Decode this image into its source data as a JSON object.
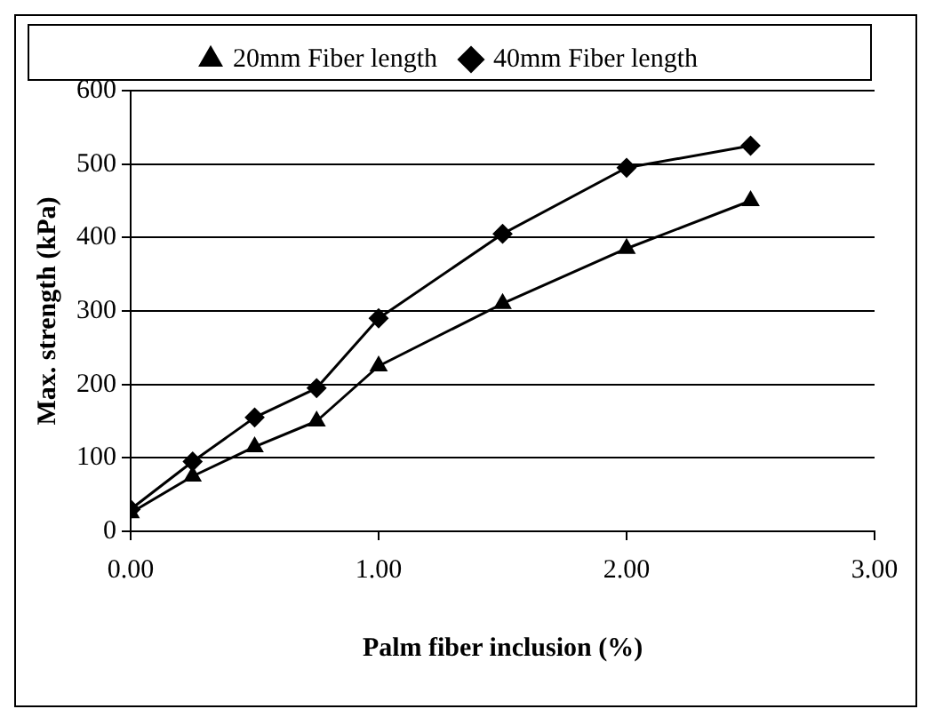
{
  "chart_data": {
    "type": "line",
    "xlabel": "Palm fiber inclusion (%)",
    "ylabel": "Max. strength (kPa)",
    "xlim": [
      0,
      3
    ],
    "xticks": [
      {
        "value": 0,
        "label": "0.00"
      },
      {
        "value": 1,
        "label": "1.00"
      },
      {
        "value": 2,
        "label": "2.00"
      },
      {
        "value": 3,
        "label": "3.00"
      }
    ],
    "ylim": [
      0,
      600
    ],
    "yticks": [
      0,
      100,
      200,
      300,
      400,
      500,
      600
    ],
    "grid": "y",
    "legend": "top",
    "x": [
      0,
      0.25,
      0.5,
      0.75,
      1,
      1.5,
      2,
      2.5
    ],
    "series": [
      {
        "name": "20mm Fiber length",
        "color": "#000000",
        "marker": "triangle",
        "values": [
          25,
          75,
          115,
          150,
          225,
          310,
          385,
          450
        ]
      },
      {
        "name": "40mm Fiber length",
        "color": "#000000",
        "marker": "diamond",
        "values": [
          30,
          95,
          155,
          195,
          290,
          405,
          495,
          525
        ]
      }
    ]
  }
}
